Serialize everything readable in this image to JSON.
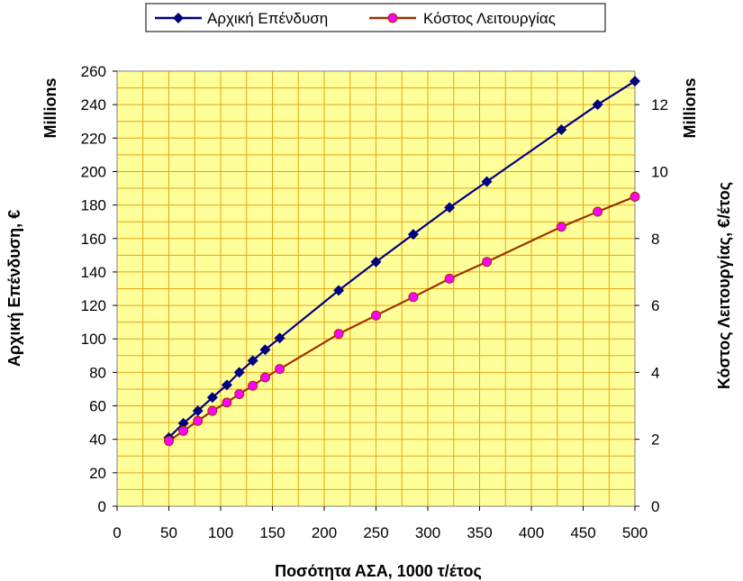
{
  "chart_data": {
    "type": "line",
    "xlabel": "Ποσότητα ΑΣΑ, 1000 τ/έτος",
    "ylabel_left": "Αρχική Επένδυση, €",
    "ylabel_right": "Κόστος Λειτουργίας, €/έτος",
    "unit_left": "Millions",
    "unit_right": "Millions",
    "xlim": [
      0,
      500
    ],
    "ylim_left": [
      0,
      260
    ],
    "ylim_right": [
      0,
      13
    ],
    "x_ticks": [
      "0",
      "50",
      "100",
      "150",
      "200",
      "250",
      "300",
      "350",
      "400",
      "450",
      "500"
    ],
    "y_left_ticks": [
      "0",
      "20",
      "40",
      "60",
      "80",
      "100",
      "120",
      "140",
      "160",
      "180",
      "200",
      "220",
      "240",
      "260"
    ],
    "y_right_ticks": [
      "0",
      "2",
      "4",
      "6",
      "8",
      "10",
      "12"
    ],
    "grid": true,
    "legend_position": "top",
    "series": [
      {
        "name": "Αρχική Επένδυση",
        "axis": "left",
        "color": "#000080",
        "marker": "diamond",
        "x": [
          50,
          64,
          78,
          92,
          106,
          118,
          131,
          143,
          157,
          214,
          250,
          286,
          321,
          357,
          429,
          464,
          500
        ],
        "y": [
          41,
          49.5,
          57,
          65,
          72.5,
          80,
          87,
          93.5,
          100.5,
          129,
          146,
          162.5,
          178.5,
          194,
          225,
          240,
          254
        ]
      },
      {
        "name": "Κόστος Λειτουργίας",
        "axis": "right",
        "color": "#993300",
        "marker_color": "#FF00FF",
        "marker": "circle",
        "x": [
          50,
          64,
          78,
          92,
          106,
          118,
          131,
          143,
          157,
          214,
          250,
          286,
          321,
          357,
          429,
          464,
          500
        ],
        "y": [
          1.95,
          2.25,
          2.55,
          2.85,
          3.1,
          3.35,
          3.6,
          3.85,
          4.1,
          5.15,
          5.7,
          6.25,
          6.8,
          7.3,
          8.35,
          8.8,
          9.25
        ]
      }
    ]
  }
}
